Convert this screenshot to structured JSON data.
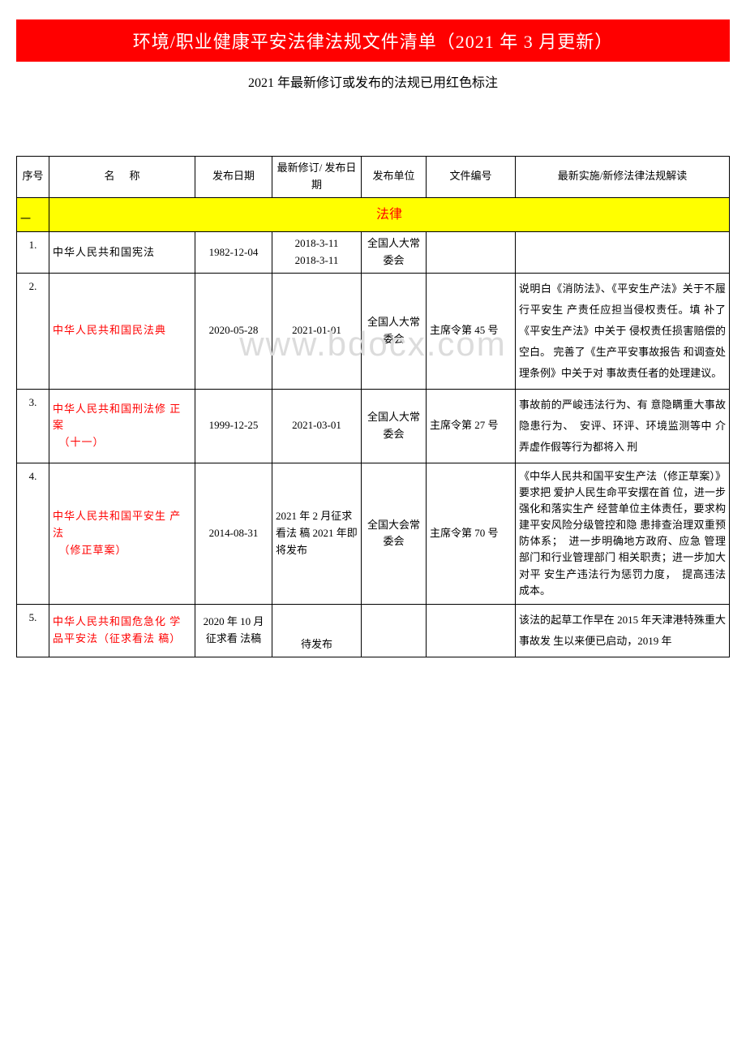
{
  "header": {
    "title": "环境/职业健康平安法律法规文件清单（2021 年 3 月更新）",
    "subtitle": "2021 年最新修订或发布的法规已用红色标注"
  },
  "watermark": "www.bdocx.com",
  "columns": {
    "seq": "序号",
    "name_a": "名",
    "name_b": "称",
    "pubdate": "发布日期",
    "revdate": "最新修订/ 发布日期",
    "org": "发布单位",
    "docno": "文件编号",
    "interp": "最新实施/新修法律法规解读"
  },
  "section": {
    "seq": "一",
    "label": "法律"
  },
  "rows": [
    {
      "seq": "1.",
      "name": "中华人民共和国宪法",
      "name_red": false,
      "pubdate": "1982-12-04",
      "revdate": "2018-3-11\n2018-3-11",
      "org": "全国人大常委会",
      "docno": "",
      "interp": ""
    },
    {
      "seq": "2.",
      "name": "中华人民共和国民法典",
      "name_red": true,
      "pubdate": "2020-05-28",
      "revdate": "2021-01-01",
      "org": "全国人大常委会",
      "docno": "主席令第 45 号",
      "interp": "说明白《消防法》、《平安生产法》关于不履行平安生 产责任应担当侵权责任。填 补了《平安生产法》中关于 侵权责任损害赔偿的空白。 完善了《生产平安事故报告 和调查处理条例》中关于对 事故责任者的处理建议。"
    },
    {
      "seq": "3.",
      "name": "中华人民共和国刑法修 正案\n　（十一）",
      "name_red": true,
      "pubdate": "1999-12-25",
      "revdate": "2021-03-01",
      "org": "全国人大常委会",
      "docno": "主席令第 27 号",
      "interp": "事故前的严峻违法行为、有 意隐瞒重大事故隐患行为、　安评、环评、环境监测等中 介弄虚作假等行为都将入 刑"
    },
    {
      "seq": "4.",
      "name": "中华人民共和国平安生 产法\n　（修正草案）",
      "name_red": true,
      "pubdate": "2014-08-31",
      "revdate": "2021 年 2 月征求看法 稿 2021 年即 将发布",
      "org": "全国大会常委会",
      "docno": "主席令第 70 号",
      "interp": "《中华人民共和国平安生产法（修正草案）》要求把 爱护人民生命平安摆在首 位，进一步强化和落实生产 经营单位主体责任，要求构 建平安风险分级管控和隐 患排查治理双重预防体系；　进一步明确地方政府、应急 管理部门和行业管理部门 相关职责；进一步加大对平 安生产违法行为惩罚力度，　提高违法成本。"
    },
    {
      "seq": "5.",
      "name": "中华人民共和国危急化 学品平安法（征求看法 稿）",
      "name_red": true,
      "pubdate": "2020 年 10 月征求看 法稿",
      "revdate": "待发布",
      "org": "",
      "docno": "",
      "interp": "该法的起草工作早在 2015 年天津港特殊重大事故发 生以来便已启动，2019 年"
    }
  ]
}
